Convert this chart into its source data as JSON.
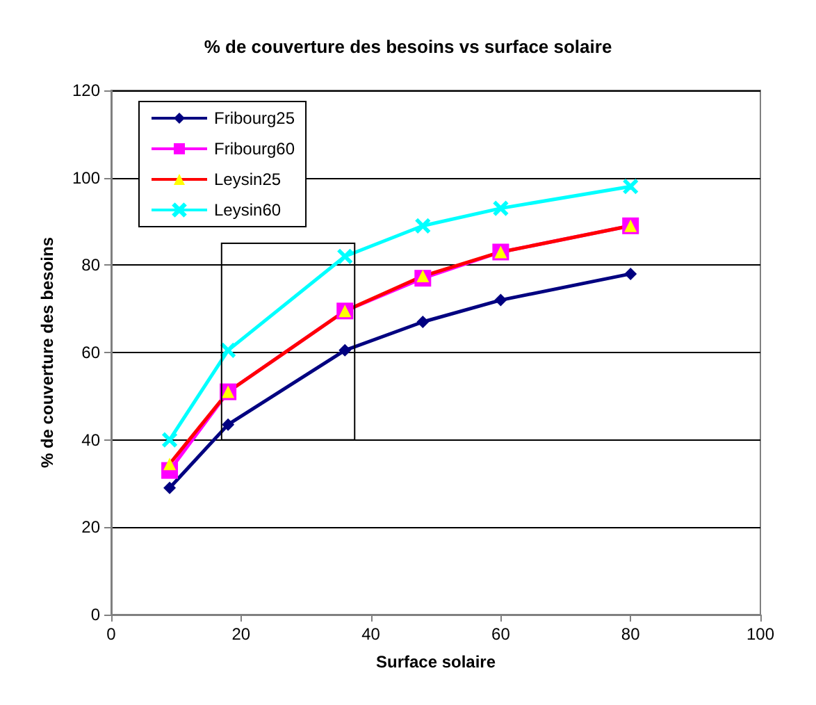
{
  "chart_data": {
    "type": "line",
    "title": "% de couverture des besoins vs surface solaire",
    "xlabel": "Surface solaire",
    "ylabel": "% de couverture des besoins",
    "xlim": [
      0,
      100
    ],
    "xticks": [
      0,
      20,
      40,
      60,
      80,
      100
    ],
    "ylim": [
      0,
      120
    ],
    "yticks": [
      0,
      20,
      40,
      60,
      80,
      100,
      120
    ],
    "grid": "y",
    "legend": "top left",
    "x": [
      9,
      18,
      36,
      48,
      60,
      80
    ],
    "series": [
      {
        "name": "Fribourg25",
        "color": "#000080",
        "marker": "diamond",
        "values": [
          29,
          43.5,
          60.5,
          67,
          72,
          78
        ]
      },
      {
        "name": "Fribourg60",
        "color": "#ff00ff",
        "marker": "square",
        "values": [
          33,
          51,
          69.5,
          77,
          83,
          89
        ]
      },
      {
        "name": "Leysin25",
        "color": "#ff0000",
        "colors": [
          "#ffff00",
          "#ffff00",
          "#ffff00",
          "#ffff00",
          "#ffff00",
          "#ffff00"
        ],
        "marker": "triangle",
        "values": [
          34.5,
          51,
          69.5,
          77.5,
          83,
          89
        ]
      },
      {
        "name": "Leysin60",
        "color": "#00ffff",
        "marker": "cross",
        "values": [
          40,
          60.5,
          82,
          89,
          93,
          98
        ]
      }
    ]
  }
}
